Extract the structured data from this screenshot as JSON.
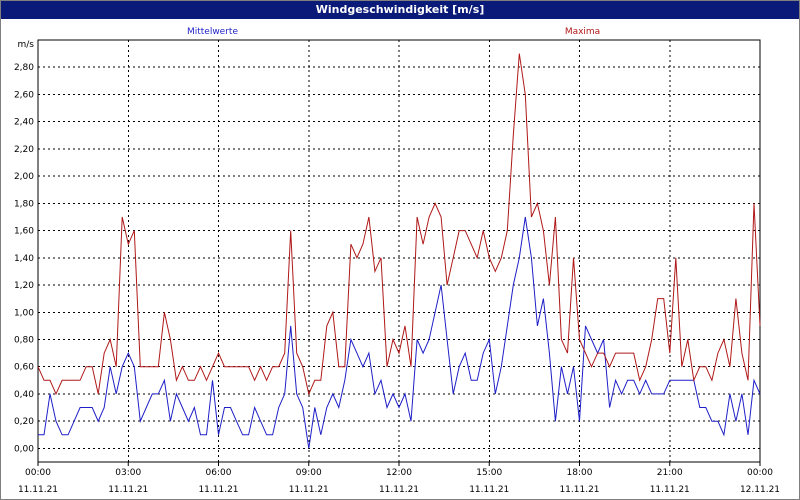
{
  "window": {
    "title": "Windgeschwindigkeit [m/s]"
  },
  "colors": {
    "mean": "#1f1fc8",
    "max": "#b01818",
    "titlebar": "#0a1a78"
  },
  "chart_data": {
    "type": "line",
    "title": "Windgeschwindigkeit [m/s]",
    "ylabel": "m/s",
    "ylim": [
      -0.1,
      3.0
    ],
    "yticks": [
      0.0,
      0.2,
      0.4,
      0.6,
      0.8,
      1.0,
      1.2,
      1.4,
      1.6,
      1.8,
      2.0,
      2.2,
      2.4,
      2.6,
      2.8
    ],
    "ytick_labels": [
      "0,00",
      "0,20",
      "0,40",
      "0,60",
      "0,80",
      "1,00",
      "1,20",
      "1,40",
      "1,60",
      "1,80",
      "2,00",
      "2,20",
      "2,40",
      "2,60",
      "2,80"
    ],
    "xlim": [
      0,
      24
    ],
    "xticks": [
      0,
      3,
      6,
      9,
      12,
      15,
      18,
      21,
      24
    ],
    "xtick_labels": [
      {
        "time": "00:00",
        "date": "11.11.21"
      },
      {
        "time": "03:00",
        "date": "11.11.21"
      },
      {
        "time": "06:00",
        "date": "11.11.21"
      },
      {
        "time": "09:00",
        "date": "11.11.21"
      },
      {
        "time": "12:00",
        "date": "11.11.21"
      },
      {
        "time": "15:00",
        "date": "11.11.21"
      },
      {
        "time": "18:00",
        "date": "11.11.21"
      },
      {
        "time": "21:00",
        "date": "11.11.21"
      },
      {
        "time": "00:00",
        "date": "12.11.21"
      }
    ],
    "grid": true,
    "legend_position": "top",
    "series": [
      {
        "name": "Mittelwerte",
        "color": "#1f1fc8",
        "points": [
          [
            0.0,
            0.1
          ],
          [
            0.2,
            0.1
          ],
          [
            0.4,
            0.4
          ],
          [
            0.6,
            0.2
          ],
          [
            0.8,
            0.1
          ],
          [
            1.0,
            0.1
          ],
          [
            1.2,
            0.2
          ],
          [
            1.4,
            0.3
          ],
          [
            1.6,
            0.3
          ],
          [
            1.8,
            0.3
          ],
          [
            2.0,
            0.2
          ],
          [
            2.2,
            0.3
          ],
          [
            2.4,
            0.6
          ],
          [
            2.6,
            0.4
          ],
          [
            2.8,
            0.6
          ],
          [
            3.0,
            0.7
          ],
          [
            3.2,
            0.6
          ],
          [
            3.4,
            0.2
          ],
          [
            3.6,
            0.3
          ],
          [
            3.8,
            0.4
          ],
          [
            4.0,
            0.4
          ],
          [
            4.2,
            0.5
          ],
          [
            4.4,
            0.2
          ],
          [
            4.6,
            0.4
          ],
          [
            4.8,
            0.3
          ],
          [
            5.0,
            0.2
          ],
          [
            5.2,
            0.3
          ],
          [
            5.4,
            0.1
          ],
          [
            5.6,
            0.1
          ],
          [
            5.8,
            0.5
          ],
          [
            6.0,
            0.1
          ],
          [
            6.2,
            0.3
          ],
          [
            6.4,
            0.3
          ],
          [
            6.6,
            0.2
          ],
          [
            6.8,
            0.1
          ],
          [
            7.0,
            0.1
          ],
          [
            7.2,
            0.3
          ],
          [
            7.4,
            0.2
          ],
          [
            7.6,
            0.1
          ],
          [
            7.8,
            0.1
          ],
          [
            8.0,
            0.3
          ],
          [
            8.2,
            0.4
          ],
          [
            8.4,
            0.9
          ],
          [
            8.6,
            0.4
          ],
          [
            8.8,
            0.3
          ],
          [
            9.0,
            0.0
          ],
          [
            9.2,
            0.3
          ],
          [
            9.4,
            0.1
          ],
          [
            9.6,
            0.3
          ],
          [
            9.8,
            0.4
          ],
          [
            10.0,
            0.3
          ],
          [
            10.2,
            0.5
          ],
          [
            10.4,
            0.8
          ],
          [
            10.6,
            0.7
          ],
          [
            10.8,
            0.6
          ],
          [
            11.0,
            0.7
          ],
          [
            11.2,
            0.4
          ],
          [
            11.4,
            0.5
          ],
          [
            11.6,
            0.3
          ],
          [
            11.8,
            0.4
          ],
          [
            12.0,
            0.3
          ],
          [
            12.2,
            0.4
          ],
          [
            12.4,
            0.2
          ],
          [
            12.6,
            0.8
          ],
          [
            12.8,
            0.7
          ],
          [
            13.0,
            0.8
          ],
          [
            13.2,
            1.0
          ],
          [
            13.4,
            1.2
          ],
          [
            13.6,
            0.8
          ],
          [
            13.8,
            0.4
          ],
          [
            14.0,
            0.6
          ],
          [
            14.2,
            0.7
          ],
          [
            14.4,
            0.5
          ],
          [
            14.6,
            0.5
          ],
          [
            14.8,
            0.7
          ],
          [
            15.0,
            0.8
          ],
          [
            15.2,
            0.4
          ],
          [
            15.4,
            0.6
          ],
          [
            15.6,
            0.9
          ],
          [
            15.8,
            1.2
          ],
          [
            16.0,
            1.4
          ],
          [
            16.2,
            1.7
          ],
          [
            16.4,
            1.4
          ],
          [
            16.6,
            0.9
          ],
          [
            16.8,
            1.1
          ],
          [
            17.0,
            0.7
          ],
          [
            17.2,
            0.2
          ],
          [
            17.4,
            0.6
          ],
          [
            17.6,
            0.4
          ],
          [
            17.8,
            0.6
          ],
          [
            18.0,
            0.2
          ],
          [
            18.2,
            0.9
          ],
          [
            18.4,
            0.8
          ],
          [
            18.6,
            0.7
          ],
          [
            18.8,
            0.8
          ],
          [
            19.0,
            0.3
          ],
          [
            19.2,
            0.5
          ],
          [
            19.4,
            0.4
          ],
          [
            19.6,
            0.5
          ],
          [
            19.8,
            0.5
          ],
          [
            20.0,
            0.4
          ],
          [
            20.2,
            0.5
          ],
          [
            20.4,
            0.4
          ],
          [
            20.6,
            0.4
          ],
          [
            20.8,
            0.4
          ],
          [
            21.0,
            0.5
          ],
          [
            21.2,
            0.5
          ],
          [
            21.4,
            0.5
          ],
          [
            21.6,
            0.5
          ],
          [
            21.8,
            0.5
          ],
          [
            22.0,
            0.3
          ],
          [
            22.2,
            0.3
          ],
          [
            22.4,
            0.2
          ],
          [
            22.6,
            0.2
          ],
          [
            22.8,
            0.1
          ],
          [
            23.0,
            0.4
          ],
          [
            23.2,
            0.2
          ],
          [
            23.4,
            0.4
          ],
          [
            23.6,
            0.1
          ],
          [
            23.8,
            0.5
          ],
          [
            24.0,
            0.4
          ]
        ]
      },
      {
        "name": "Maxima",
        "color": "#b01818",
        "points": [
          [
            0.0,
            0.6
          ],
          [
            0.2,
            0.5
          ],
          [
            0.4,
            0.5
          ],
          [
            0.6,
            0.4
          ],
          [
            0.8,
            0.5
          ],
          [
            1.0,
            0.5
          ],
          [
            1.2,
            0.5
          ],
          [
            1.4,
            0.5
          ],
          [
            1.6,
            0.6
          ],
          [
            1.8,
            0.6
          ],
          [
            2.0,
            0.4
          ],
          [
            2.2,
            0.7
          ],
          [
            2.4,
            0.8
          ],
          [
            2.6,
            0.6
          ],
          [
            2.8,
            1.7
          ],
          [
            3.0,
            1.5
          ],
          [
            3.2,
            1.6
          ],
          [
            3.4,
            0.6
          ],
          [
            3.6,
            0.6
          ],
          [
            3.8,
            0.6
          ],
          [
            4.0,
            0.6
          ],
          [
            4.2,
            1.0
          ],
          [
            4.4,
            0.8
          ],
          [
            4.6,
            0.5
          ],
          [
            4.8,
            0.6
          ],
          [
            5.0,
            0.5
          ],
          [
            5.2,
            0.5
          ],
          [
            5.4,
            0.6
          ],
          [
            5.6,
            0.5
          ],
          [
            5.8,
            0.6
          ],
          [
            6.0,
            0.7
          ],
          [
            6.2,
            0.6
          ],
          [
            6.4,
            0.6
          ],
          [
            6.6,
            0.6
          ],
          [
            6.8,
            0.6
          ],
          [
            7.0,
            0.6
          ],
          [
            7.2,
            0.5
          ],
          [
            7.4,
            0.6
          ],
          [
            7.6,
            0.5
          ],
          [
            7.8,
            0.6
          ],
          [
            8.0,
            0.6
          ],
          [
            8.2,
            0.7
          ],
          [
            8.4,
            1.6
          ],
          [
            8.6,
            0.7
          ],
          [
            8.8,
            0.6
          ],
          [
            9.0,
            0.4
          ],
          [
            9.2,
            0.5
          ],
          [
            9.4,
            0.5
          ],
          [
            9.6,
            0.9
          ],
          [
            9.8,
            1.0
          ],
          [
            10.0,
            0.6
          ],
          [
            10.2,
            0.6
          ],
          [
            10.4,
            1.5
          ],
          [
            10.6,
            1.4
          ],
          [
            10.8,
            1.5
          ],
          [
            11.0,
            1.7
          ],
          [
            11.2,
            1.3
          ],
          [
            11.4,
            1.4
          ],
          [
            11.6,
            0.6
          ],
          [
            11.8,
            0.8
          ],
          [
            12.0,
            0.7
          ],
          [
            12.2,
            0.9
          ],
          [
            12.4,
            0.6
          ],
          [
            12.6,
            1.7
          ],
          [
            12.8,
            1.5
          ],
          [
            13.0,
            1.7
          ],
          [
            13.2,
            1.8
          ],
          [
            13.4,
            1.7
          ],
          [
            13.6,
            1.2
          ],
          [
            13.8,
            1.4
          ],
          [
            14.0,
            1.6
          ],
          [
            14.2,
            1.6
          ],
          [
            14.4,
            1.5
          ],
          [
            14.6,
            1.4
          ],
          [
            14.8,
            1.6
          ],
          [
            15.0,
            1.4
          ],
          [
            15.2,
            1.3
          ],
          [
            15.4,
            1.4
          ],
          [
            15.6,
            1.6
          ],
          [
            15.8,
            2.3
          ],
          [
            16.0,
            2.9
          ],
          [
            16.2,
            2.6
          ],
          [
            16.4,
            1.7
          ],
          [
            16.6,
            1.8
          ],
          [
            16.8,
            1.6
          ],
          [
            17.0,
            1.2
          ],
          [
            17.2,
            1.7
          ],
          [
            17.4,
            0.8
          ],
          [
            17.6,
            0.7
          ],
          [
            17.8,
            1.4
          ],
          [
            18.0,
            0.8
          ],
          [
            18.2,
            0.7
          ],
          [
            18.4,
            0.6
          ],
          [
            18.6,
            0.7
          ],
          [
            18.8,
            0.7
          ],
          [
            19.0,
            0.6
          ],
          [
            19.2,
            0.7
          ],
          [
            19.4,
            0.7
          ],
          [
            19.6,
            0.7
          ],
          [
            19.8,
            0.7
          ],
          [
            20.0,
            0.5
          ],
          [
            20.2,
            0.6
          ],
          [
            20.4,
            0.8
          ],
          [
            20.6,
            1.1
          ],
          [
            20.8,
            1.1
          ],
          [
            21.0,
            0.7
          ],
          [
            21.2,
            1.4
          ],
          [
            21.4,
            0.6
          ],
          [
            21.6,
            0.8
          ],
          [
            21.8,
            0.5
          ],
          [
            22.0,
            0.6
          ],
          [
            22.2,
            0.6
          ],
          [
            22.4,
            0.5
          ],
          [
            22.6,
            0.7
          ],
          [
            22.8,
            0.8
          ],
          [
            23.0,
            0.6
          ],
          [
            23.2,
            1.1
          ],
          [
            23.4,
            0.7
          ],
          [
            23.6,
            0.5
          ],
          [
            23.8,
            1.8
          ],
          [
            24.0,
            0.9
          ]
        ]
      }
    ]
  }
}
